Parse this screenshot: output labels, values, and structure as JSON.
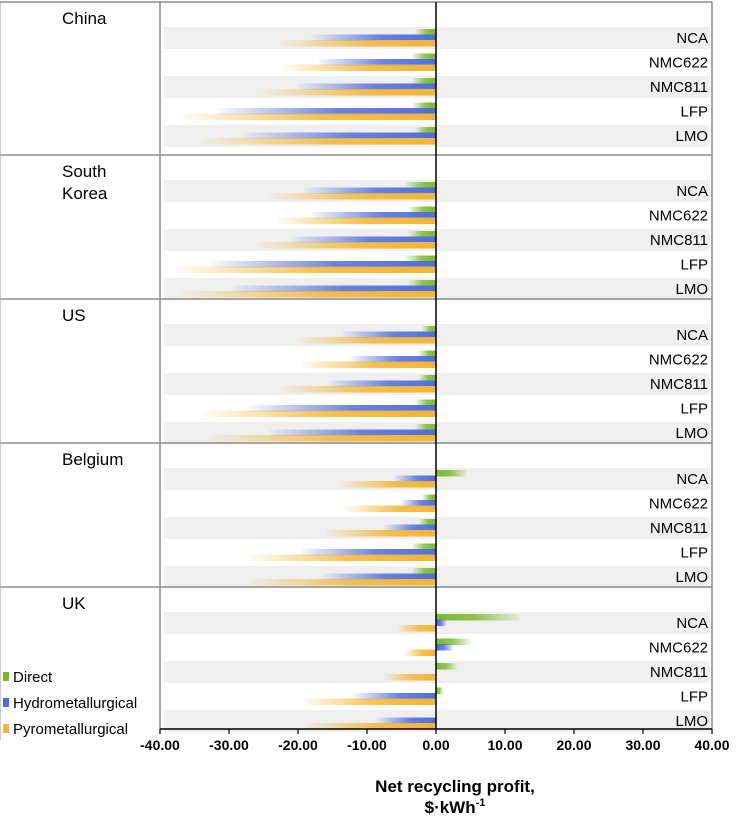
{
  "chart_data": {
    "type": "bar",
    "orientation": "horizontal",
    "xlabel": "Net recycling profit,",
    "xlabel_unit": "$·kWh",
    "xlabel_unit_sup": "-1",
    "xlim": [
      -40,
      40
    ],
    "xticks": [
      -40,
      -30,
      -20,
      -10,
      0,
      10,
      20,
      30,
      40
    ],
    "xtick_labels": [
      "-40.00",
      "-30.00",
      "-20.00",
      "-10.00",
      "0.00",
      "10.00",
      "20.00",
      "30.00",
      "40.00"
    ],
    "series": [
      {
        "name": "Direct",
        "color": "#7cb82f"
      },
      {
        "name": "Hydrometallurgical",
        "color": "#4f6edb"
      },
      {
        "name": "Pyrometallurgical",
        "color": "#f2b535"
      }
    ],
    "cathodes": [
      "NCA",
      "NMC622",
      "NMC811",
      "LFP",
      "LMO"
    ],
    "groups": [
      {
        "country": [
          "China"
        ],
        "values": {
          "Direct": [
            -3,
            -3.5,
            -3.5,
            -3.5,
            -3
          ],
          "Hydrometallurgical": [
            -18,
            -17,
            -20,
            -31.5,
            -28
          ],
          "Pyrometallurgical": [
            -22.5,
            -22,
            -25,
            -36.5,
            -34
          ]
        }
      },
      {
        "country": [
          "South",
          "Korea"
        ],
        "values": {
          "Direct": [
            -4.5,
            -4,
            -4,
            -4.5,
            -4
          ],
          "Hydrometallurgical": [
            -19,
            -18,
            -21,
            -32.5,
            -29.5
          ],
          "Pyrometallurgical": [
            -24,
            -23,
            -26,
            -37.5,
            -37
          ]
        }
      },
      {
        "country": [
          "US"
        ],
        "values": {
          "Direct": [
            -2,
            -2.5,
            -2.5,
            -3,
            -3
          ],
          "Hydrometallurgical": [
            -13.5,
            -12.5,
            -15.5,
            -27,
            -24
          ],
          "Pyrometallurgical": [
            -20,
            -19.5,
            -22.5,
            -33.5,
            -33
          ]
        }
      },
      {
        "country": [
          "Belgium"
        ],
        "values": {
          "Direct": [
            4.5,
            -2,
            -2.5,
            -3.5,
            -3.5
          ],
          "Hydrometallurgical": [
            -6,
            -5,
            -7.5,
            -19.5,
            -16.5
          ],
          "Pyrometallurgical": [
            -14,
            -13,
            -16,
            -27,
            -27
          ]
        }
      },
      {
        "country": [
          "UK"
        ],
        "values": {
          "Direct": [
            12,
            5,
            3,
            1,
            0
          ],
          "Hydrometallurgical": [
            1.5,
            2.5,
            0,
            -12,
            -8.5
          ],
          "Pyrometallurgical": [
            -5.5,
            -4.5,
            -7.5,
            -19,
            -19
          ]
        }
      }
    ]
  }
}
